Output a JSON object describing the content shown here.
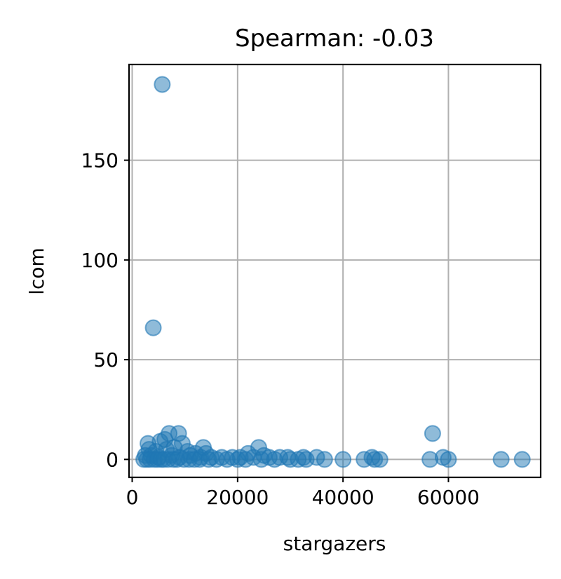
{
  "chart_data": {
    "type": "scatter",
    "title": "Spearman: -0.03",
    "xlabel": "stargazers",
    "ylabel": "lcom",
    "xlim": [
      -600,
      77500
    ],
    "ylim": [
      -9,
      198
    ],
    "x_ticks": [
      0,
      20000,
      40000,
      60000
    ],
    "x_tick_labels": [
      "0",
      "20000",
      "40000",
      "60000"
    ],
    "y_ticks": [
      0,
      50,
      100,
      150
    ],
    "y_tick_labels": [
      "0",
      "50",
      "100",
      "150"
    ],
    "grid": true,
    "legend": "none",
    "color": "#1f77b4",
    "points": [
      {
        "x": 5700,
        "y": 188
      },
      {
        "x": 4000,
        "y": 66
      },
      {
        "x": 7000,
        "y": 13
      },
      {
        "x": 8800,
        "y": 13
      },
      {
        "x": 57000,
        "y": 13
      },
      {
        "x": 3000,
        "y": 8
      },
      {
        "x": 5300,
        "y": 9
      },
      {
        "x": 6200,
        "y": 10
      },
      {
        "x": 9500,
        "y": 8
      },
      {
        "x": 13500,
        "y": 6
      },
      {
        "x": 24000,
        "y": 6
      },
      {
        "x": 3200,
        "y": 5
      },
      {
        "x": 4500,
        "y": 4
      },
      {
        "x": 6500,
        "y": 5
      },
      {
        "x": 8000,
        "y": 6
      },
      {
        "x": 10500,
        "y": 4
      },
      {
        "x": 12000,
        "y": 3
      },
      {
        "x": 14000,
        "y": 3
      },
      {
        "x": 22000,
        "y": 3
      },
      {
        "x": 25000,
        "y": 2
      },
      {
        "x": 2500,
        "y": 2
      },
      {
        "x": 3600,
        "y": 2
      },
      {
        "x": 5000,
        "y": 1
      },
      {
        "x": 7500,
        "y": 2
      },
      {
        "x": 9000,
        "y": 1
      },
      {
        "x": 11000,
        "y": 2
      },
      {
        "x": 13000,
        "y": 1
      },
      {
        "x": 15000,
        "y": 1
      },
      {
        "x": 17000,
        "y": 1
      },
      {
        "x": 19000,
        "y": 1
      },
      {
        "x": 20500,
        "y": 1
      },
      {
        "x": 23000,
        "y": 1
      },
      {
        "x": 26000,
        "y": 1
      },
      {
        "x": 28000,
        "y": 1
      },
      {
        "x": 29500,
        "y": 1
      },
      {
        "x": 32500,
        "y": 1
      },
      {
        "x": 35000,
        "y": 1
      },
      {
        "x": 45500,
        "y": 1
      },
      {
        "x": 59000,
        "y": 1
      },
      {
        "x": 2200,
        "y": 0
      },
      {
        "x": 2800,
        "y": 0
      },
      {
        "x": 3400,
        "y": 0
      },
      {
        "x": 4200,
        "y": 0
      },
      {
        "x": 4800,
        "y": 0
      },
      {
        "x": 5500,
        "y": 0
      },
      {
        "x": 6000,
        "y": 0
      },
      {
        "x": 6800,
        "y": 0
      },
      {
        "x": 7800,
        "y": 0
      },
      {
        "x": 8500,
        "y": 0
      },
      {
        "x": 9800,
        "y": 0
      },
      {
        "x": 10800,
        "y": 0
      },
      {
        "x": 11800,
        "y": 0
      },
      {
        "x": 12800,
        "y": 0
      },
      {
        "x": 14500,
        "y": 0
      },
      {
        "x": 16000,
        "y": 0
      },
      {
        "x": 18000,
        "y": 0
      },
      {
        "x": 20000,
        "y": 0
      },
      {
        "x": 21500,
        "y": 0
      },
      {
        "x": 24500,
        "y": 0
      },
      {
        "x": 27000,
        "y": 0
      },
      {
        "x": 30000,
        "y": 0
      },
      {
        "x": 31500,
        "y": 0
      },
      {
        "x": 33000,
        "y": 0
      },
      {
        "x": 36500,
        "y": 0
      },
      {
        "x": 40000,
        "y": 0
      },
      {
        "x": 44000,
        "y": 0
      },
      {
        "x": 46000,
        "y": 0
      },
      {
        "x": 47000,
        "y": 0
      },
      {
        "x": 56500,
        "y": 0
      },
      {
        "x": 60000,
        "y": 0
      },
      {
        "x": 70000,
        "y": 0
      },
      {
        "x": 74000,
        "y": 0
      }
    ]
  }
}
